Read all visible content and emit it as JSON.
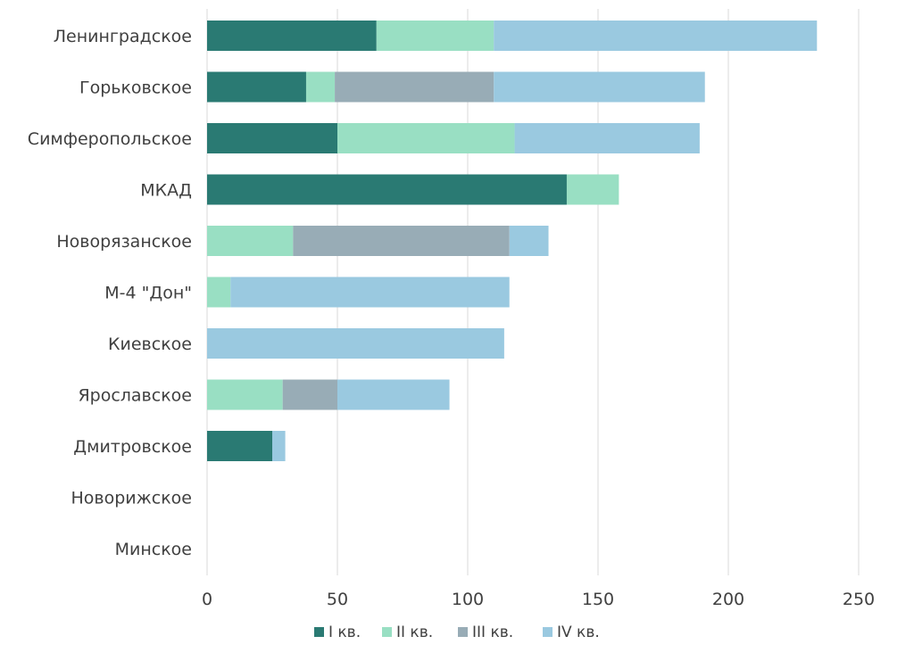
{
  "chart_data": {
    "type": "bar",
    "orientation": "horizontal",
    "stacked": true,
    "categories": [
      "Ленинградское",
      "Горьковское",
      "Симферопольское",
      "МКАД",
      "Новорязанское",
      "М-4 \"Дон\"",
      "Киевское",
      "Ярославское",
      "Дмитровское ",
      "Новорижское",
      "Минское"
    ],
    "series": [
      {
        "name": "I кв.",
        "color": "#2a7a73",
        "values": [
          65,
          38,
          50,
          138,
          0,
          0,
          0,
          0,
          25,
          0,
          0
        ]
      },
      {
        "name": "II кв.",
        "color": "#99dfc3",
        "values": [
          45,
          11,
          68,
          20,
          33,
          9,
          0,
          29,
          0,
          0,
          0
        ]
      },
      {
        "name": "III кв.",
        "color": "#98acb6",
        "values": [
          0,
          61,
          0,
          0,
          83,
          0,
          0,
          21,
          0,
          0,
          0
        ]
      },
      {
        "name": "IV кв.",
        "color": "#9ac9e0",
        "values": [
          124,
          81,
          71,
          0,
          15,
          107,
          114,
          43,
          5,
          0,
          0
        ]
      }
    ],
    "x_ticks": [
      "0",
      "50",
      "100",
      "150",
      "200",
      "250"
    ],
    "xlim": [
      0,
      250
    ],
    "grid": true,
    "legend_position": "bottom"
  }
}
